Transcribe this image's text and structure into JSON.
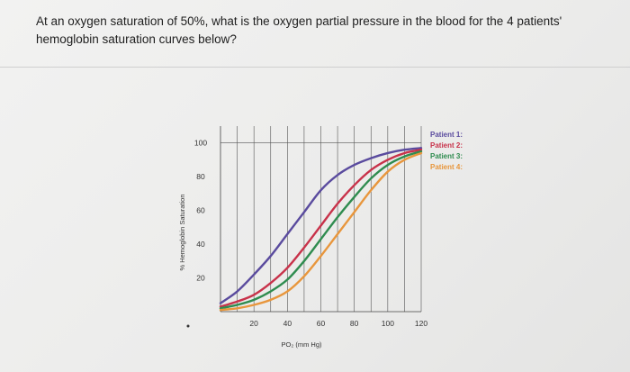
{
  "question": {
    "line1": "At an oxygen saturation of 50%, what is the oxygen partial pressure in the blood for the 4 patients'",
    "line2": "hemoglobin saturation curves below?"
  },
  "chart_data": {
    "type": "line",
    "xlabel": "PO₂ (mm Hg)",
    "ylabel": "% Hemoglobin Saturation",
    "xlim": [
      0,
      120
    ],
    "ylim": [
      0,
      110
    ],
    "x_ticks": [
      20,
      40,
      60,
      80,
      100,
      120
    ],
    "y_ticks": [
      20,
      40,
      60,
      80,
      100
    ],
    "grid": "vertical",
    "legend_position": "top-right",
    "series": [
      {
        "name": "Patient 1:",
        "color": "#5a4b9e",
        "points": [
          [
            0,
            5
          ],
          [
            10,
            12
          ],
          [
            20,
            22
          ],
          [
            30,
            33
          ],
          [
            40,
            46
          ],
          [
            50,
            59
          ],
          [
            60,
            72
          ],
          [
            70,
            81
          ],
          [
            80,
            87
          ],
          [
            90,
            91
          ],
          [
            100,
            94
          ],
          [
            110,
            96
          ],
          [
            120,
            97
          ]
        ]
      },
      {
        "name": "Patient 2:",
        "color": "#c8324a",
        "points": [
          [
            0,
            3
          ],
          [
            10,
            6
          ],
          [
            20,
            10
          ],
          [
            30,
            17
          ],
          [
            40,
            26
          ],
          [
            50,
            38
          ],
          [
            60,
            51
          ],
          [
            70,
            64
          ],
          [
            80,
            75
          ],
          [
            90,
            84
          ],
          [
            100,
            90
          ],
          [
            110,
            94
          ],
          [
            120,
            96
          ]
        ]
      },
      {
        "name": "Patient 3:",
        "color": "#2f8c4f",
        "points": [
          [
            0,
            2
          ],
          [
            10,
            4
          ],
          [
            20,
            7
          ],
          [
            30,
            12
          ],
          [
            40,
            19
          ],
          [
            50,
            30
          ],
          [
            60,
            43
          ],
          [
            70,
            56
          ],
          [
            80,
            68
          ],
          [
            90,
            79
          ],
          [
            100,
            87
          ],
          [
            110,
            92
          ],
          [
            120,
            95
          ]
        ]
      },
      {
        "name": "Patient 4:",
        "color": "#e8963c",
        "points": [
          [
            0,
            1
          ],
          [
            10,
            2
          ],
          [
            20,
            4
          ],
          [
            30,
            7
          ],
          [
            40,
            12
          ],
          [
            50,
            21
          ],
          [
            60,
            33
          ],
          [
            70,
            46
          ],
          [
            80,
            59
          ],
          [
            90,
            72
          ],
          [
            100,
            83
          ],
          [
            110,
            90
          ],
          [
            120,
            94
          ]
        ]
      }
    ]
  }
}
